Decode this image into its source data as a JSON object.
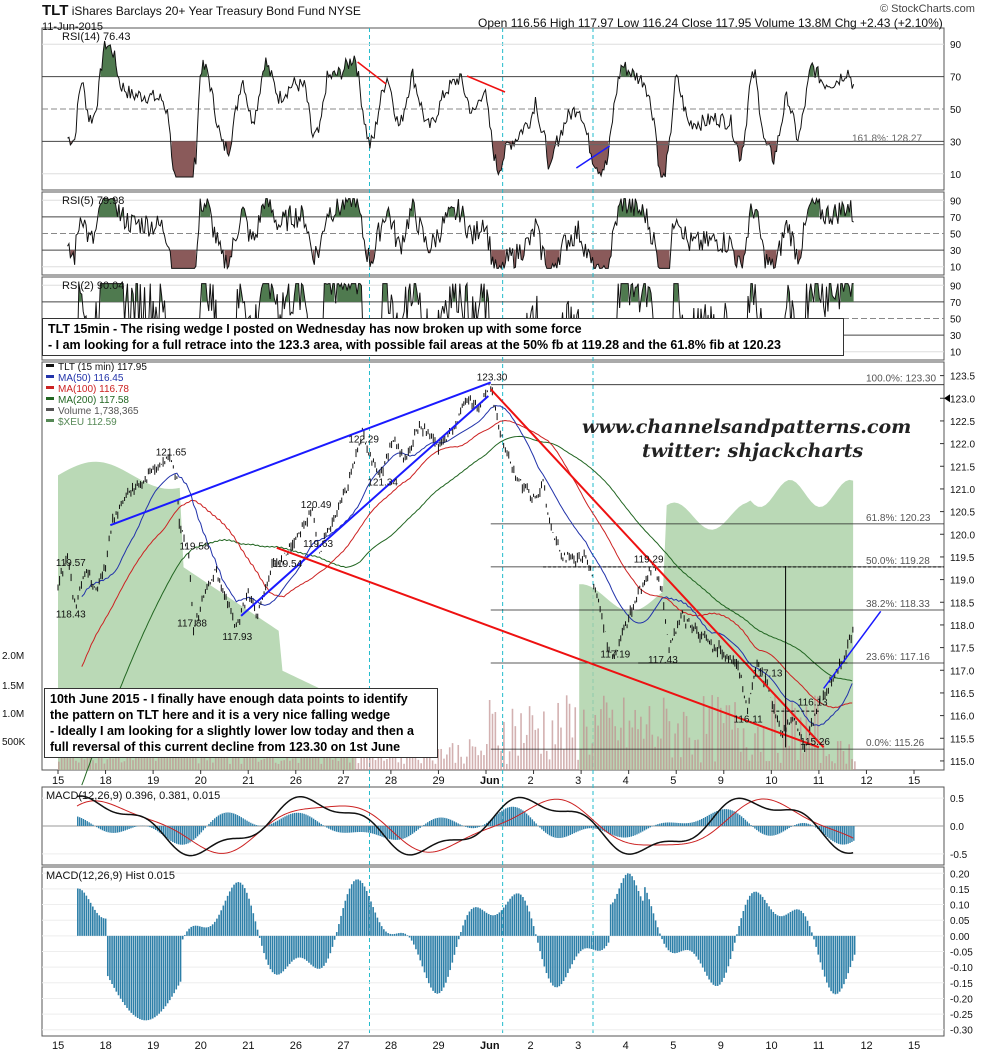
{
  "header": {
    "ticker": "TLT",
    "name": "iShares Barclays 20+ Year Treasury Bond Fund",
    "exchange": "NYSE",
    "date": "11-Jun-2015",
    "ohlc_text": "Open 116.56  High 117.97  Low 116.24  Close 117.95  Volume 13.8M  Chg +2.43 (+2.10%)",
    "source": "© StockCharts.com"
  },
  "notes": {
    "top": "TLT 15min - The rising wedge I posted on Wednesday has now broken up with some force\n- I am looking for a full retrace into the 123.3 area, with possible fail areas at the 50% fb at 119.28 and the 61.8% fib at 120.23",
    "bottom": "10th June 2015 - I finally have enough data points to identify\nthe pattern on TLT here and it is a very nice falling wedge\n- Ideally I am looking for a slightly lower low today and then a\nfull reversal of this current decline from 123.30 on 1st June"
  },
  "watermark": {
    "line1": "www.channelsandpatterns.com",
    "line2": "twitter: shjackcharts"
  },
  "colors": {
    "price": "#111111",
    "ma50": "#2233aa",
    "ma100": "#cc2222",
    "ma200": "#226622",
    "xeu_area": "#a9cfa4",
    "volume": "#c09090",
    "wedge_blue": "#1a1aff",
    "wedge_red": "#ee1111",
    "rsi_ob_fill": "#4f7a4f",
    "rsi_os_fill": "#8a5a5a",
    "hist": "#2d7fa8",
    "cyan_marker": "#22bbcc"
  },
  "chart_data": [
    {
      "type": "line",
      "panel": "RSI(14)",
      "label": "RSI(14) 76.43",
      "y_ticks": [
        10,
        30,
        50,
        70,
        90
      ],
      "ylim": [
        0,
        100
      ],
      "fib_label": "161.8%: 128.27",
      "current": 76.43
    },
    {
      "type": "line",
      "panel": "RSI(5)",
      "label": "RSI(5) 79.98",
      "y_ticks": [
        10,
        30,
        50,
        70,
        90
      ],
      "ylim": [
        0,
        100
      ],
      "current": 79.98
    },
    {
      "type": "line",
      "panel": "RSI(2)",
      "label": "RSI(2) 90.04",
      "y_ticks": [
        10,
        30,
        50,
        70,
        90
      ],
      "ylim": [
        0,
        100
      ],
      "current": 90.04
    },
    {
      "type": "line",
      "panel": "price",
      "legend": [
        "TLT (15 min) 117.95",
        "MA(50) 116.45",
        "MA(100) 116.78",
        "MA(200) 117.58",
        "Volume 1,738,365",
        "$XEU 112.59"
      ],
      "y_ticks": [
        115.0,
        115.5,
        116.0,
        116.5,
        117.0,
        117.5,
        118.0,
        118.5,
        119.0,
        119.5,
        120.0,
        120.5,
        121.0,
        121.5,
        122.0,
        122.5,
        123.0,
        123.5
      ],
      "ylim": [
        114.8,
        123.8
      ],
      "volume_ticks": [
        "2.0M",
        "1.5M",
        "1.0M",
        "500K"
      ],
      "x_ticks": [
        "15",
        "18",
        "19",
        "20",
        "21",
        "26",
        "27",
        "28",
        "29",
        "Jun",
        "2",
        "3",
        "4",
        "5",
        "9",
        "10",
        "11",
        "12",
        "15"
      ],
      "annotations": [
        {
          "text": "123.30",
          "x": 9.1,
          "y": 123.3
        },
        {
          "text": "122.29",
          "x": 6.4,
          "y": 122.29
        },
        {
          "text": "121.65",
          "x": 2.35,
          "y": 121.65
        },
        {
          "text": "121.34",
          "x": 6.8,
          "y": 121.34
        },
        {
          "text": "120.49",
          "x": 5.4,
          "y": 120.49
        },
        {
          "text": "119.57",
          "x": 0.25,
          "y": 119.57
        },
        {
          "text": "119.58",
          "x": 2.85,
          "y": 119.58
        },
        {
          "text": "119.54",
          "x": 4.8,
          "y": 119.54
        },
        {
          "text": "119.63",
          "x": 5.45,
          "y": 119.63
        },
        {
          "text": "118.43",
          "x": 0.25,
          "y": 118.43
        },
        {
          "text": "117.88",
          "x": 2.8,
          "y": 117.88
        },
        {
          "text": "117.93",
          "x": 3.75,
          "y": 117.93
        },
        {
          "text": "119.29",
          "x": 12.4,
          "y": 119.29
        },
        {
          "text": "117.43",
          "x": 12.7,
          "y": 117.43
        },
        {
          "text": "117.19",
          "x": 11.7,
          "y": 117.19
        },
        {
          "text": "117.13",
          "x": 14.9,
          "y": 117.13
        },
        {
          "text": "116.13",
          "x": 15.85,
          "y": 116.13
        },
        {
          "text": "116.11",
          "x": 14.5,
          "y": 116.11
        },
        {
          "text": "115.26",
          "x": 15.9,
          "y": 115.26
        }
      ],
      "fib_levels": [
        {
          "label": "100.0%: 123.30",
          "value": 123.3
        },
        {
          "label": "61.8%: 120.23",
          "value": 120.23
        },
        {
          "label": "50.0%: 119.28",
          "value": 119.28
        },
        {
          "label": "38.2%: 118.33",
          "value": 118.33
        },
        {
          "label": "23.6%: 117.16",
          "value": 117.16
        },
        {
          "label": "0.0%: 115.26",
          "value": 115.26
        }
      ],
      "price_path": [
        [
          0,
          118.9
        ],
        [
          0.2,
          119.57
        ],
        [
          0.35,
          118.43
        ],
        [
          0.6,
          119.2
        ],
        [
          0.8,
          118.7
        ],
        [
          1.0,
          119.3
        ],
        [
          1.15,
          120.3
        ],
        [
          1.4,
          120.8
        ],
        [
          1.7,
          121.1
        ],
        [
          2.0,
          121.4
        ],
        [
          2.35,
          121.65
        ],
        [
          2.5,
          121.3
        ],
        [
          2.55,
          120.2
        ],
        [
          2.75,
          119.58
        ],
        [
          2.85,
          117.88
        ],
        [
          3.1,
          118.7
        ],
        [
          3.3,
          119.2
        ],
        [
          3.6,
          118.4
        ],
        [
          3.75,
          117.93
        ],
        [
          4.0,
          118.7
        ],
        [
          4.2,
          118.2
        ],
        [
          4.5,
          119.3
        ],
        [
          4.8,
          119.54
        ],
        [
          5.1,
          120.1
        ],
        [
          5.35,
          120.49
        ],
        [
          5.5,
          119.63
        ],
        [
          5.8,
          120.3
        ],
        [
          6.1,
          121.1
        ],
        [
          6.4,
          122.29
        ],
        [
          6.6,
          121.6
        ],
        [
          6.8,
          121.34
        ],
        [
          7.05,
          122.1
        ],
        [
          7.3,
          121.6
        ],
        [
          7.6,
          122.4
        ],
        [
          8.0,
          121.9
        ],
        [
          8.3,
          122.3
        ],
        [
          8.6,
          123.0
        ],
        [
          8.85,
          122.8
        ],
        [
          9.1,
          123.3
        ],
        [
          9.3,
          122.2
        ],
        [
          9.55,
          121.5
        ],
        [
          9.8,
          121.0
        ],
        [
          10.1,
          120.8
        ],
        [
          10.2,
          121.2
        ],
        [
          10.3,
          120.4
        ],
        [
          10.55,
          119.6
        ],
        [
          10.85,
          119.4
        ],
        [
          11.1,
          119.5
        ],
        [
          11.4,
          118.4
        ],
        [
          11.55,
          117.6
        ],
        [
          11.7,
          117.19
        ],
        [
          11.9,
          117.9
        ],
        [
          12.2,
          118.7
        ],
        [
          12.5,
          119.29
        ],
        [
          12.7,
          118.8
        ],
        [
          12.85,
          117.43
        ],
        [
          13.1,
          118.2
        ],
        [
          13.4,
          117.9
        ],
        [
          13.7,
          117.6
        ],
        [
          14.0,
          117.4
        ],
        [
          14.3,
          117.1
        ],
        [
          14.5,
          116.11
        ],
        [
          14.7,
          117.13
        ],
        [
          14.95,
          116.6
        ],
        [
          15.2,
          115.6
        ],
        [
          15.45,
          116.0
        ],
        [
          15.7,
          115.26
        ],
        [
          15.95,
          116.13
        ],
        [
          16.2,
          116.6
        ],
        [
          16.5,
          117.2
        ],
        [
          16.75,
          117.95
        ]
      ]
    },
    {
      "type": "line",
      "panel": "MACD",
      "label": "MACD(12,26,9) 0.396, 0.381, 0.015",
      "y_ticks": [
        -0.5,
        0.0,
        0.5
      ],
      "ylim": [
        -0.7,
        0.7
      ]
    },
    {
      "type": "bar",
      "panel": "MACD Hist",
      "label": "MACD(12,26,9) Hist 0.015",
      "y_ticks": [
        -0.3,
        -0.25,
        -0.2,
        -0.15,
        -0.1,
        -0.05,
        0.0,
        0.05,
        0.1,
        0.15,
        0.2
      ],
      "ylim": [
        -0.32,
        0.22
      ],
      "current": 0.015
    }
  ]
}
